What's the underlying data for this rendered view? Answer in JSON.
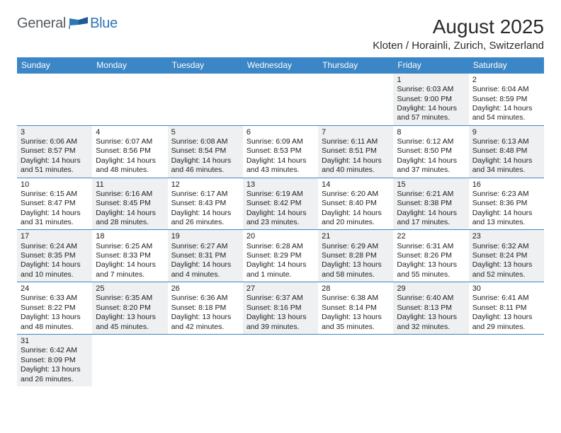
{
  "logo": {
    "general": "General",
    "blue": "Blue"
  },
  "title": "August 2025",
  "location": "Kloten / Horainli, Zurich, Switzerland",
  "colors": {
    "header_bar": "#3b86c6",
    "shade": "#eef0f1",
    "rule": "#3b86c6",
    "text": "#222222",
    "logo_gray": "#555b60",
    "logo_blue": "#2f76b6"
  },
  "weekdays": [
    "Sunday",
    "Monday",
    "Tuesday",
    "Wednesday",
    "Thursday",
    "Friday",
    "Saturday"
  ],
  "weeks": [
    [
      {
        "empty": true
      },
      {
        "empty": true
      },
      {
        "empty": true
      },
      {
        "empty": true
      },
      {
        "empty": true
      },
      {
        "num": "1",
        "shade": true,
        "sunrise": "Sunrise: 6:03 AM",
        "sunset": "Sunset: 9:00 PM",
        "day1": "Daylight: 14 hours",
        "day2": "and 57 minutes."
      },
      {
        "num": "2",
        "shade": false,
        "sunrise": "Sunrise: 6:04 AM",
        "sunset": "Sunset: 8:59 PM",
        "day1": "Daylight: 14 hours",
        "day2": "and 54 minutes."
      }
    ],
    [
      {
        "num": "3",
        "shade": true,
        "sunrise": "Sunrise: 6:06 AM",
        "sunset": "Sunset: 8:57 PM",
        "day1": "Daylight: 14 hours",
        "day2": "and 51 minutes."
      },
      {
        "num": "4",
        "shade": false,
        "sunrise": "Sunrise: 6:07 AM",
        "sunset": "Sunset: 8:56 PM",
        "day1": "Daylight: 14 hours",
        "day2": "and 48 minutes."
      },
      {
        "num": "5",
        "shade": true,
        "sunrise": "Sunrise: 6:08 AM",
        "sunset": "Sunset: 8:54 PM",
        "day1": "Daylight: 14 hours",
        "day2": "and 46 minutes."
      },
      {
        "num": "6",
        "shade": false,
        "sunrise": "Sunrise: 6:09 AM",
        "sunset": "Sunset: 8:53 PM",
        "day1": "Daylight: 14 hours",
        "day2": "and 43 minutes."
      },
      {
        "num": "7",
        "shade": true,
        "sunrise": "Sunrise: 6:11 AM",
        "sunset": "Sunset: 8:51 PM",
        "day1": "Daylight: 14 hours",
        "day2": "and 40 minutes."
      },
      {
        "num": "8",
        "shade": false,
        "sunrise": "Sunrise: 6:12 AM",
        "sunset": "Sunset: 8:50 PM",
        "day1": "Daylight: 14 hours",
        "day2": "and 37 minutes."
      },
      {
        "num": "9",
        "shade": true,
        "sunrise": "Sunrise: 6:13 AM",
        "sunset": "Sunset: 8:48 PM",
        "day1": "Daylight: 14 hours",
        "day2": "and 34 minutes."
      }
    ],
    [
      {
        "num": "10",
        "shade": false,
        "sunrise": "Sunrise: 6:15 AM",
        "sunset": "Sunset: 8:47 PM",
        "day1": "Daylight: 14 hours",
        "day2": "and 31 minutes."
      },
      {
        "num": "11",
        "shade": true,
        "sunrise": "Sunrise: 6:16 AM",
        "sunset": "Sunset: 8:45 PM",
        "day1": "Daylight: 14 hours",
        "day2": "and 28 minutes."
      },
      {
        "num": "12",
        "shade": false,
        "sunrise": "Sunrise: 6:17 AM",
        "sunset": "Sunset: 8:43 PM",
        "day1": "Daylight: 14 hours",
        "day2": "and 26 minutes."
      },
      {
        "num": "13",
        "shade": true,
        "sunrise": "Sunrise: 6:19 AM",
        "sunset": "Sunset: 8:42 PM",
        "day1": "Daylight: 14 hours",
        "day2": "and 23 minutes."
      },
      {
        "num": "14",
        "shade": false,
        "sunrise": "Sunrise: 6:20 AM",
        "sunset": "Sunset: 8:40 PM",
        "day1": "Daylight: 14 hours",
        "day2": "and 20 minutes."
      },
      {
        "num": "15",
        "shade": true,
        "sunrise": "Sunrise: 6:21 AM",
        "sunset": "Sunset: 8:38 PM",
        "day1": "Daylight: 14 hours",
        "day2": "and 17 minutes."
      },
      {
        "num": "16",
        "shade": false,
        "sunrise": "Sunrise: 6:23 AM",
        "sunset": "Sunset: 8:36 PM",
        "day1": "Daylight: 14 hours",
        "day2": "and 13 minutes."
      }
    ],
    [
      {
        "num": "17",
        "shade": true,
        "sunrise": "Sunrise: 6:24 AM",
        "sunset": "Sunset: 8:35 PM",
        "day1": "Daylight: 14 hours",
        "day2": "and 10 minutes."
      },
      {
        "num": "18",
        "shade": false,
        "sunrise": "Sunrise: 6:25 AM",
        "sunset": "Sunset: 8:33 PM",
        "day1": "Daylight: 14 hours",
        "day2": "and 7 minutes."
      },
      {
        "num": "19",
        "shade": true,
        "sunrise": "Sunrise: 6:27 AM",
        "sunset": "Sunset: 8:31 PM",
        "day1": "Daylight: 14 hours",
        "day2": "and 4 minutes."
      },
      {
        "num": "20",
        "shade": false,
        "sunrise": "Sunrise: 6:28 AM",
        "sunset": "Sunset: 8:29 PM",
        "day1": "Daylight: 14 hours",
        "day2": "and 1 minute."
      },
      {
        "num": "21",
        "shade": true,
        "sunrise": "Sunrise: 6:29 AM",
        "sunset": "Sunset: 8:28 PM",
        "day1": "Daylight: 13 hours",
        "day2": "and 58 minutes."
      },
      {
        "num": "22",
        "shade": false,
        "sunrise": "Sunrise: 6:31 AM",
        "sunset": "Sunset: 8:26 PM",
        "day1": "Daylight: 13 hours",
        "day2": "and 55 minutes."
      },
      {
        "num": "23",
        "shade": true,
        "sunrise": "Sunrise: 6:32 AM",
        "sunset": "Sunset: 8:24 PM",
        "day1": "Daylight: 13 hours",
        "day2": "and 52 minutes."
      }
    ],
    [
      {
        "num": "24",
        "shade": false,
        "sunrise": "Sunrise: 6:33 AM",
        "sunset": "Sunset: 8:22 PM",
        "day1": "Daylight: 13 hours",
        "day2": "and 48 minutes."
      },
      {
        "num": "25",
        "shade": true,
        "sunrise": "Sunrise: 6:35 AM",
        "sunset": "Sunset: 8:20 PM",
        "day1": "Daylight: 13 hours",
        "day2": "and 45 minutes."
      },
      {
        "num": "26",
        "shade": false,
        "sunrise": "Sunrise: 6:36 AM",
        "sunset": "Sunset: 8:18 PM",
        "day1": "Daylight: 13 hours",
        "day2": "and 42 minutes."
      },
      {
        "num": "27",
        "shade": true,
        "sunrise": "Sunrise: 6:37 AM",
        "sunset": "Sunset: 8:16 PM",
        "day1": "Daylight: 13 hours",
        "day2": "and 39 minutes."
      },
      {
        "num": "28",
        "shade": false,
        "sunrise": "Sunrise: 6:38 AM",
        "sunset": "Sunset: 8:14 PM",
        "day1": "Daylight: 13 hours",
        "day2": "and 35 minutes."
      },
      {
        "num": "29",
        "shade": true,
        "sunrise": "Sunrise: 6:40 AM",
        "sunset": "Sunset: 8:13 PM",
        "day1": "Daylight: 13 hours",
        "day2": "and 32 minutes."
      },
      {
        "num": "30",
        "shade": false,
        "sunrise": "Sunrise: 6:41 AM",
        "sunset": "Sunset: 8:11 PM",
        "day1": "Daylight: 13 hours",
        "day2": "and 29 minutes."
      }
    ],
    [
      {
        "num": "31",
        "shade": true,
        "sunrise": "Sunrise: 6:42 AM",
        "sunset": "Sunset: 8:09 PM",
        "day1": "Daylight: 13 hours",
        "day2": "and 26 minutes."
      },
      {
        "empty": true
      },
      {
        "empty": true
      },
      {
        "empty": true
      },
      {
        "empty": true
      },
      {
        "empty": true
      },
      {
        "empty": true
      }
    ]
  ]
}
